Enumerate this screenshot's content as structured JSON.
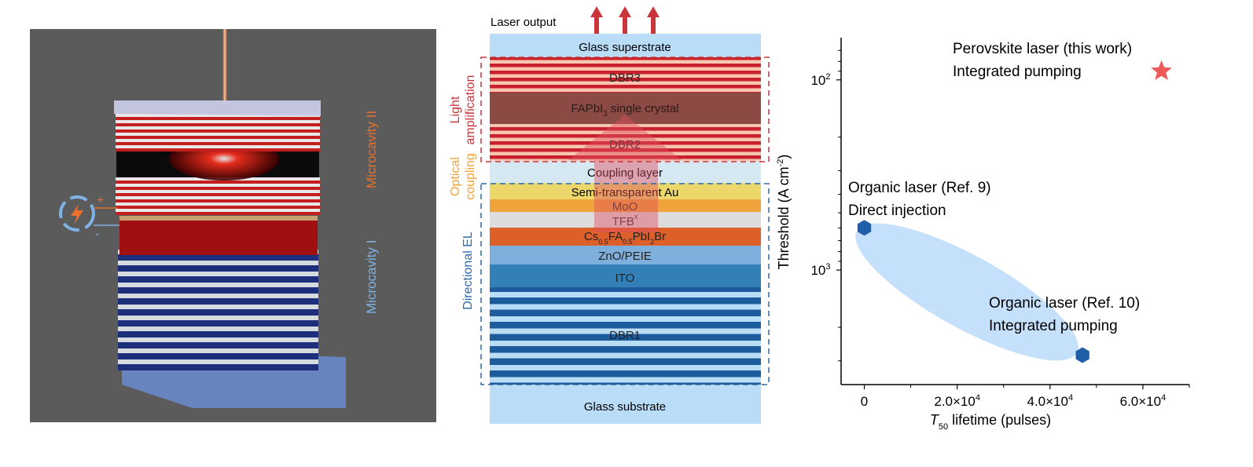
{
  "render_panel": {
    "label_top": "Microcavity II",
    "label_bottom": "Microcavity I",
    "plus": "+",
    "minus": "-",
    "colors": {
      "background": "#5b5b5b",
      "red": "#d42a1a",
      "blue": "#1d3f8f",
      "orange": "#e8702a",
      "lightblue": "#7fb2e5"
    }
  },
  "schematic": {
    "laser_output": "Laser output",
    "group_light": [
      "Light",
      "amplification"
    ],
    "group_optical": [
      "Optical",
      "coupling"
    ],
    "group_el": "Directional EL",
    "layers": {
      "glass_super": "Glass superstrate",
      "dbr3": "DBR3",
      "fapbi3": "FAPbI",
      "fapbi3_sub": "3",
      "fapbi3_rest": " single crystal",
      "dbr2": "DBR2",
      "coupling": "Coupling layer",
      "au": "Semi-transparent Au",
      "moox": "MoO",
      "moox_sub": "x",
      "tfb": "TFB",
      "pvk": [
        "Cs",
        "0.5",
        "FA",
        "0.5",
        "PbI",
        "2",
        "Br"
      ],
      "zno": "ZnO/PEIE",
      "ito": "ITO",
      "dbr1": "DBR1",
      "glass_sub": "Glass substrate"
    }
  },
  "chart_data": {
    "type": "scatter",
    "xlabel": "T",
    "xlabel_sub": "50",
    "xlabel_rest": " lifetime (pulses)",
    "ylabel": "Threshold (A cm",
    "ylabel_sup": "-2",
    "ylabel_end": ")",
    "xlim": [
      -5000,
      70000
    ],
    "ylim": [
      4000,
      60
    ],
    "yscale": "log",
    "y_inverted": true,
    "xticks": [
      {
        "v": 0,
        "label": "0"
      },
      {
        "v": 20000,
        "label": "2.0×10",
        "exp": "4"
      },
      {
        "v": 40000,
        "label": "4.0×10",
        "exp": "4"
      },
      {
        "v": 60000,
        "label": "6.0×10",
        "exp": "4"
      }
    ],
    "yticks": [
      {
        "v": 100,
        "label": "10",
        "exp": "2"
      },
      {
        "v": 1000,
        "label": "10",
        "exp": "3"
      }
    ],
    "points": [
      {
        "x": 0,
        "y": 600,
        "marker": "hexagon",
        "color": "#1f5fa8",
        "label": [
          "Organic laser (Ref. 9)",
          "Direct injection"
        ]
      },
      {
        "x": 47000,
        "y": 2800,
        "marker": "hexagon",
        "color": "#1f5fa8",
        "label": [
          "Organic laser (Ref. 10)",
          "Integrated pumping"
        ]
      },
      {
        "x": 64000,
        "y": 90,
        "marker": "star",
        "color": "#ef5a5a",
        "label": [
          "Perovskite laser (this work)",
          "Integrated pumping"
        ]
      }
    ],
    "highlight_color": "#c4e0fa",
    "grid": false
  }
}
